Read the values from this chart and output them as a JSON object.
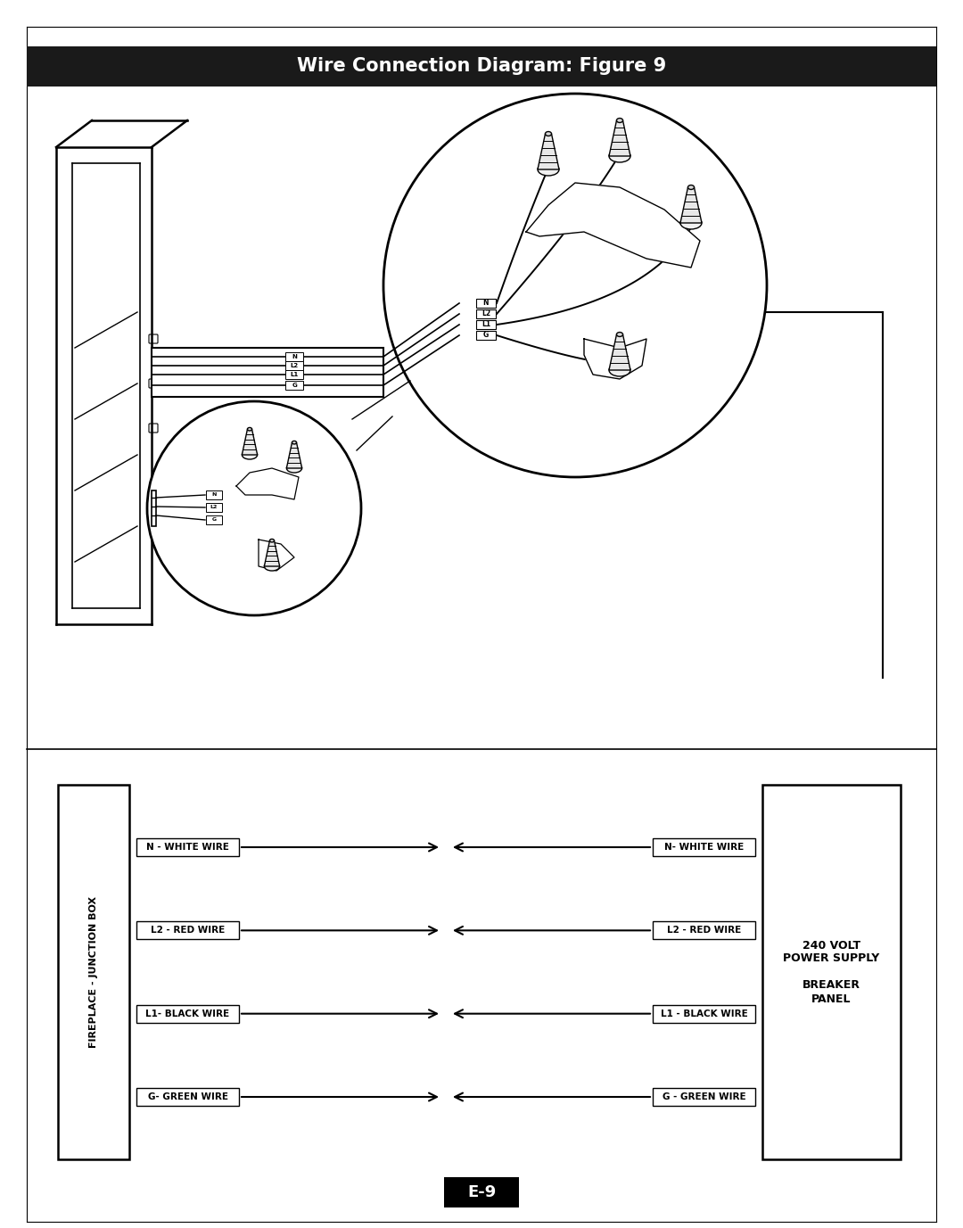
{
  "title": "Wire Connection Diagram: Figure 9",
  "title_bg": "#1a1a1a",
  "title_color": "#ffffff",
  "title_fontsize": 15,
  "page_bg": "#ffffff",
  "page_label": "E-9",
  "wire_rows": [
    {
      "label_left": "N - WHITE WIRE",
      "label_right": "N- WHITE WIRE"
    },
    {
      "label_left": "L2 - RED WIRE",
      "label_right": "L2 - RED WIRE"
    },
    {
      "label_left": "L1- BLACK WIRE",
      "label_right": "L1 - BLACK WIRE"
    },
    {
      "label_left": "G- GREEN WIRE",
      "label_right": "G - GREEN WIRE"
    }
  ],
  "left_box_label": "FIREPLACE - JUNCTION BOX",
  "right_box_label": "240 VOLT\nPOWER SUPPLY\n\nBREAKER\nPANEL",
  "line_color": "#000000",
  "border_color": "#000000",
  "fig_width": 10.8,
  "fig_height": 13.77,
  "dpi": 100
}
